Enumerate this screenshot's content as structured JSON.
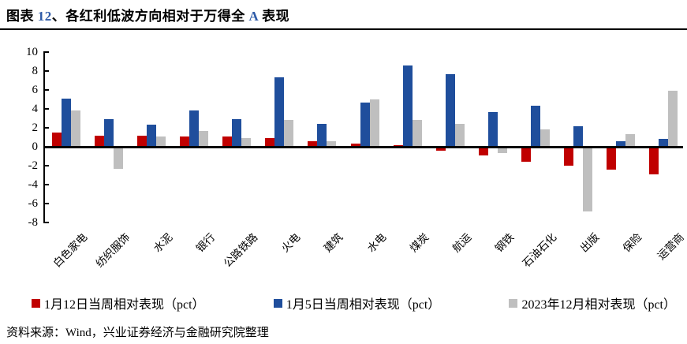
{
  "header": {
    "title_prefix": "图表 ",
    "title_number": "12",
    "title_mid": "、各红利低波方向相对于万得全 ",
    "title_letter": "A",
    "title_suffix": " 表现"
  },
  "footer": {
    "source_label": "资料来源：",
    "source_text": "Wind，兴业证券经济与金融研究院整理"
  },
  "colors": {
    "red": "#C00000",
    "blue": "#1F4E9C",
    "gray": "#BFBFBF",
    "accent_blue": "#2E5BA8",
    "axis": "#000000"
  },
  "chart_data": {
    "type": "bar",
    "title": "各红利低波方向相对于万得全A表现",
    "categories": [
      "白色家电",
      "纺织服饰",
      "水泥",
      "银行",
      "公路铁路",
      "火电",
      "建筑",
      "水电",
      "煤炭",
      "航运",
      "钢铁",
      "石油石化",
      "出版",
      "保险",
      "运营商"
    ],
    "series": [
      {
        "key": "jan12-week",
        "name": "1月12日当周相对表现（pct）",
        "color_key": "red",
        "values": [
          1.5,
          1.2,
          1.2,
          1.1,
          1.1,
          0.9,
          0.6,
          0.3,
          0.2,
          -0.4,
          -0.9,
          -1.6,
          -2.0,
          -2.4,
          -2.9
        ]
      },
      {
        "key": "jan5-week",
        "name": "1月5日当周相对表现（pct）",
        "color_key": "blue",
        "values": [
          5.1,
          2.9,
          2.3,
          3.8,
          2.9,
          7.3,
          2.4,
          4.7,
          8.6,
          7.7,
          3.7,
          4.3,
          2.2,
          0.6,
          0.8
        ]
      },
      {
        "key": "dec2023",
        "name": "2023年12月相对表现（pct）",
        "color_key": "gray",
        "values": [
          3.8,
          -2.3,
          1.1,
          1.7,
          0.9,
          2.8,
          0.6,
          5.0,
          2.8,
          2.4,
          -0.7,
          1.8,
          -6.8,
          1.3,
          5.9
        ]
      }
    ],
    "ylim": [
      -8,
      10
    ],
    "ytick_step": 2,
    "yticks": [
      "10",
      "8",
      "6",
      "4",
      "2",
      "0",
      "-2",
      "-4",
      "-6",
      "-8"
    ],
    "grid": false,
    "legend_position": "bottom"
  }
}
